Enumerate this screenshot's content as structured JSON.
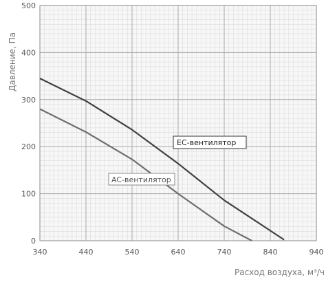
{
  "chart_data": {
    "type": "line",
    "title": "",
    "xlabel": "Расход воздуха, м³/ч",
    "ylabel": "Давление, Па",
    "xlim": [
      340,
      940
    ],
    "ylim": [
      0,
      500
    ],
    "x_ticks": [
      "340",
      "440",
      "540",
      "640",
      "740",
      "840",
      "940"
    ],
    "y_ticks": [
      "0",
      "100",
      "200",
      "300",
      "400",
      "500"
    ],
    "grid": true,
    "series": [
      {
        "name": "EC-вентилятор",
        "color": "#404040",
        "points": [
          [
            340,
            345
          ],
          [
            440,
            297
          ],
          [
            540,
            236
          ],
          [
            640,
            164
          ],
          [
            740,
            86
          ],
          [
            870,
            2
          ]
        ]
      },
      {
        "name": "AC-вентилятор",
        "color": "#6e6e6e",
        "points": [
          [
            340,
            280
          ],
          [
            440,
            231
          ],
          [
            540,
            173
          ],
          [
            640,
            100
          ],
          [
            740,
            31
          ],
          [
            800,
            0
          ]
        ]
      }
    ]
  }
}
